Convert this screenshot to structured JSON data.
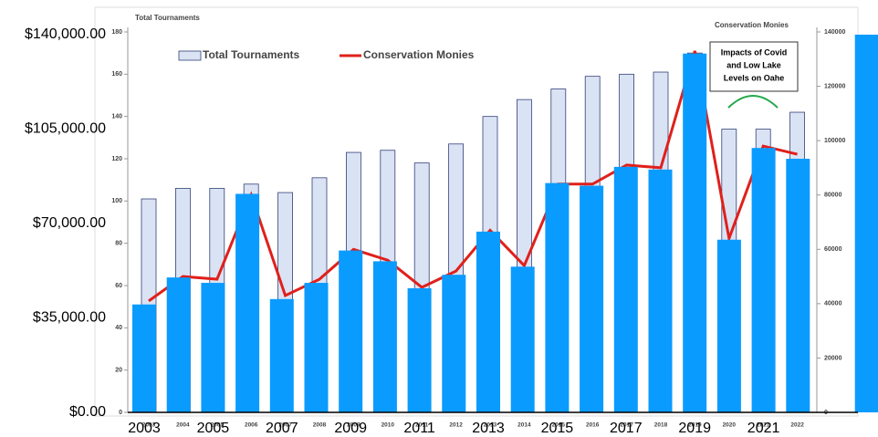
{
  "chart_data": [
    {
      "type": "bar",
      "categories": [
        "2003",
        null,
        "2005",
        null,
        "2007",
        null,
        "2009",
        null,
        "2011",
        null,
        "2013",
        null,
        "2015",
        null,
        "2017",
        null,
        "2019",
        null,
        "2021",
        null,
        null,
        null
      ],
      "values": [
        40000,
        50000,
        48000,
        81000,
        42000,
        48000,
        60000,
        56000,
        46000,
        51000,
        67000,
        54000,
        85000,
        84000,
        91000,
        90000,
        133000,
        64000,
        98000,
        94000,
        null,
        140000
      ],
      "color": "#0a9bff",
      "ylim": [
        0,
        140000
      ],
      "yticks": [
        {
          "value": 0,
          "label": "$0.00"
        },
        {
          "value": 35000,
          "label": "$35,000.00"
        },
        {
          "value": 70000,
          "label": "$70,000.00"
        },
        {
          "value": 105000,
          "label": "$105,000.00"
        },
        {
          "value": 140000,
          "label": "$140,000.00"
        }
      ]
    },
    {
      "type": "combo",
      "ylabel": "Total Tournaments",
      "y2label": "Conservation Monies",
      "categories": [
        "2003",
        "2004",
        "2005",
        "2006",
        "2007",
        "2008",
        "2009",
        "2010",
        "2011",
        "2012",
        "2013",
        "2014",
        "2015",
        "2016",
        "2017",
        "2018",
        "2019",
        "2020",
        "2021",
        "2022"
      ],
      "series": [
        {
          "name": "Total Tournaments",
          "color": "#dae3f3",
          "values": [
            101,
            106,
            106,
            108,
            104,
            111,
            123,
            124,
            118,
            127,
            140,
            148,
            153,
            159,
            160,
            161,
            170,
            134,
            134,
            142
          ]
        },
        {
          "name": "Conservation Monies",
          "color": "#e0201b",
          "axis": "y2",
          "values": [
            41000,
            50000,
            49000,
            80000,
            43000,
            49000,
            60000,
            56000,
            46000,
            52000,
            67000,
            54000,
            84000,
            84000,
            91000,
            90000,
            133000,
            64000,
            98000,
            95000
          ]
        }
      ],
      "ylim": [
        0,
        180
      ],
      "yticks": [
        0,
        20,
        40,
        60,
        80,
        100,
        120,
        140,
        160,
        180
      ],
      "y2lim": [
        0,
        140000
      ],
      "y2ticks": [
        0,
        20000,
        40000,
        60000,
        80000,
        100000,
        120000,
        140000
      ],
      "annotation": [
        "Impacts of Covid",
        "and Low Lake",
        "Levels on Oahe"
      ]
    }
  ]
}
